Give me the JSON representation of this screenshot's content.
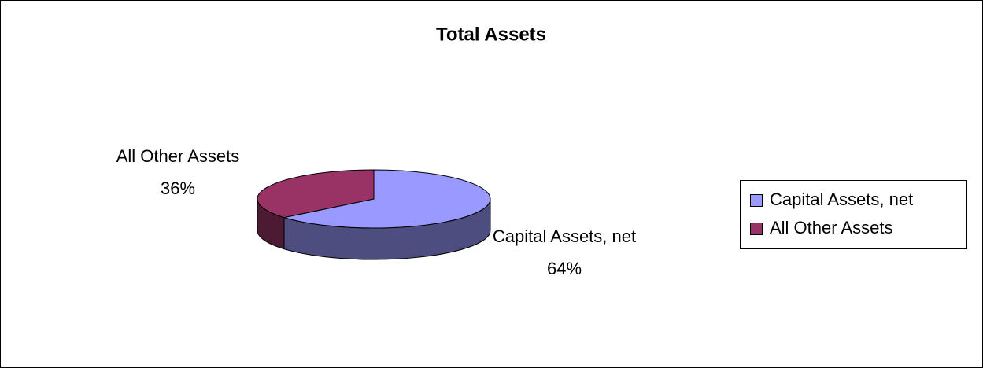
{
  "chart_data": {
    "type": "pie",
    "title": "Total Assets",
    "categories": [
      "Capital Assets, net",
      "All Other Assets"
    ],
    "values": [
      64,
      36
    ],
    "value_labels": [
      "64%",
      "36%"
    ],
    "colors": [
      "#9999ff",
      "#993366"
    ],
    "legend": "right"
  }
}
